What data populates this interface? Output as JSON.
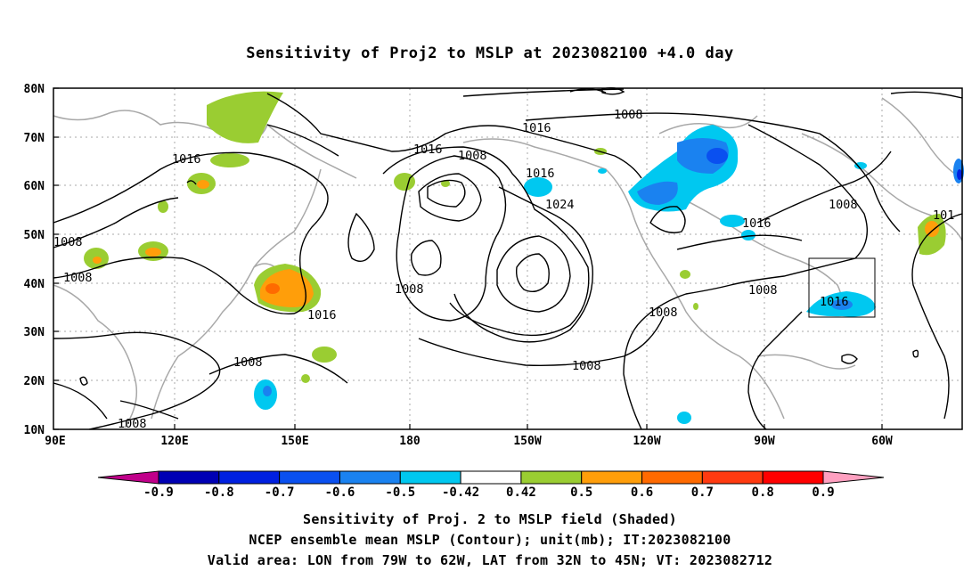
{
  "title": "Sensitivity of Proj2 to MSLP at 2023082100 +4.0 day",
  "map": {
    "lat_ticks": [
      "80N",
      "70N",
      "60N",
      "50N",
      "40N",
      "30N",
      "20N",
      "10N"
    ],
    "lon_ticks": [
      "90E",
      "120E",
      "150E",
      "180",
      "150W",
      "120W",
      "90W",
      "60W"
    ],
    "contour_labels": [
      "1008",
      "1016",
      "1008",
      "1016",
      "1024",
      "1008",
      "1016",
      "1008",
      "1008",
      "1016",
      "1008",
      "1016",
      "1008",
      "1008",
      "1008",
      "1016",
      "1008",
      "1016",
      "1008",
      "101"
    ],
    "valid_box_label": "1016"
  },
  "colorbar": {
    "labels": [
      "-0.9",
      "-0.8",
      "-0.7",
      "-0.6",
      "-0.5",
      "-0.42",
      "0.42",
      "0.5",
      "0.6",
      "0.7",
      "0.8",
      "0.9"
    ],
    "colors": [
      "#c0008a",
      "#0000b4",
      "#0020e0",
      "#0a50f0",
      "#1a82f0",
      "#00c8f0",
      "#ffffff",
      "#9acd32",
      "#ff9e0a",
      "#ff6a00",
      "#ff3a10",
      "#ff0000",
      "#ffa0c0"
    ]
  },
  "captions": [
    "Sensitivity of Proj. 2 to MSLP field (Shaded)",
    "NCEP ensemble mean MSLP (Contour); unit(mb); IT:2023082100",
    "Valid area: LON from 79W to 62W, LAT from 32N to 45N; VT: 2023082712"
  ]
}
